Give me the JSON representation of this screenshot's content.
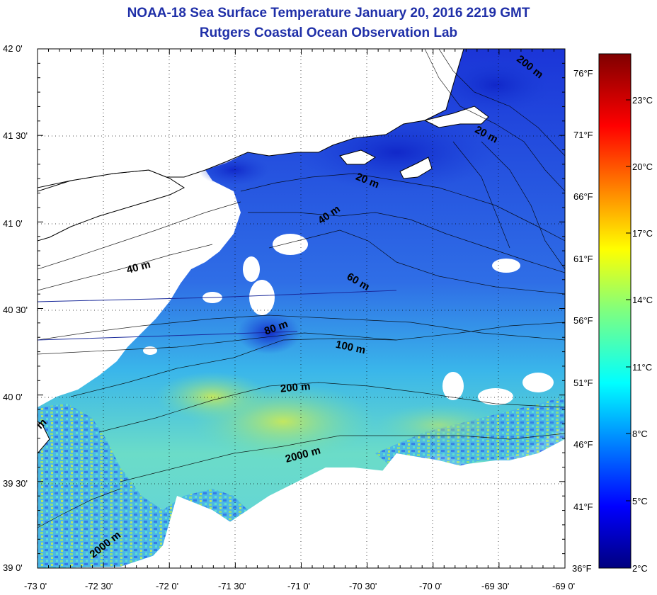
{
  "title": "NOAA-18 Sea Surface Temperature January 20, 2016 2219 GMT",
  "subtitle": "Rutgers Coastal Ocean Observation Lab",
  "map": {
    "lon_range": [
      -73,
      -69
    ],
    "lat_range": [
      39,
      42
    ],
    "lon_ticks": [
      "-73 0'",
      "-72 30'",
      "-72 0'",
      "-71 30'",
      "-71 0'",
      "-70 30'",
      "-70 0'",
      "-69 30'",
      "-69 0'"
    ],
    "lat_ticks": [
      "42 0'",
      "41 30'",
      "41 0'",
      "40 30'",
      "40 0'",
      "39 30'",
      "39 0'"
    ],
    "contour_labels": [
      "200 m",
      "20 m",
      "40 m",
      "40 m",
      "60 m",
      "80 m",
      "100 m",
      "200 m",
      "2000 m",
      "2000 m",
      "20 m",
      "m"
    ],
    "colors": {
      "land_background": "#ffffff",
      "coastline": "#000000",
      "shelf_cold": "#1e3cd2",
      "slope_warm": "#5ad6e6"
    }
  },
  "colorbar": {
    "fahrenheit_ticks": [
      "76°F",
      "71°F",
      "66°F",
      "61°F",
      "56°F",
      "51°F",
      "46°F",
      "41°F",
      "36°F"
    ],
    "celsius_ticks": [
      "23°C",
      "20°C",
      "17°C",
      "14°C",
      "11°C",
      "8°C",
      "5°C",
      "2°C"
    ],
    "range_c": [
      2,
      25
    ],
    "colormap": "jet"
  }
}
